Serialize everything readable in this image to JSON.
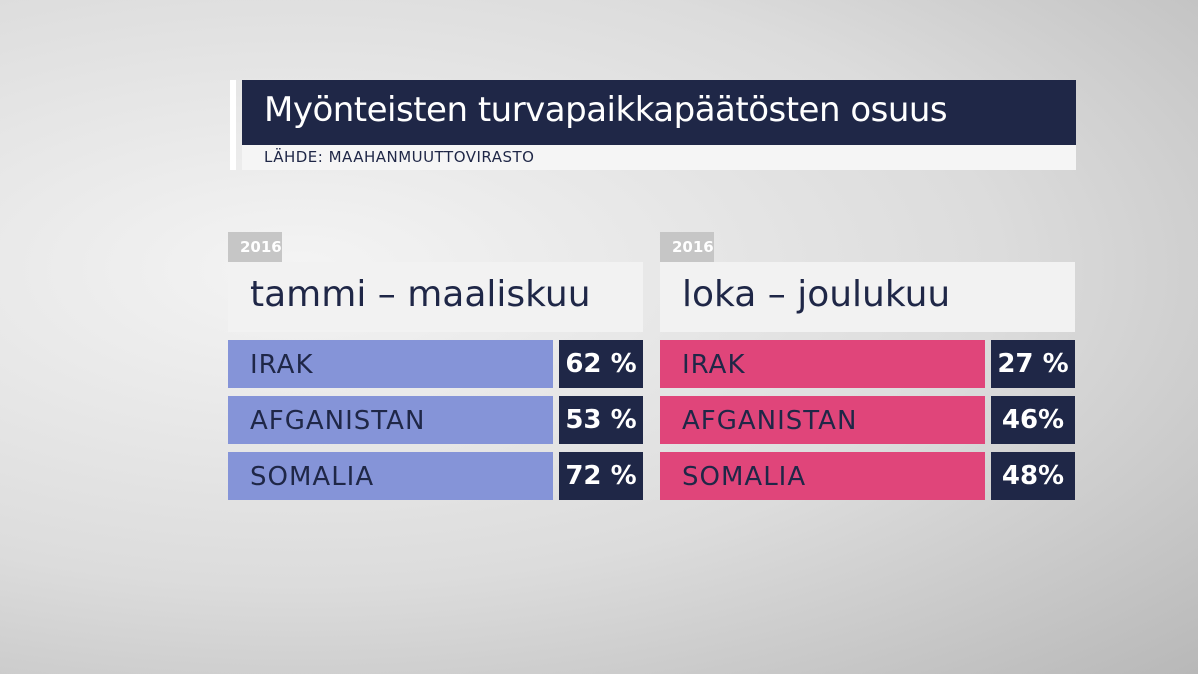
{
  "header": {
    "title": "Myönteisten turvapaikkapäätösten osuus",
    "source": "LÄHDE: MAAHANMUUTTOVIRASTO"
  },
  "panels": [
    {
      "year": "2016",
      "period": "tammi – maaliskuu",
      "color": "#8594d8",
      "rows": [
        {
          "label": "IRAK",
          "value": "62 %"
        },
        {
          "label": "AFGANISTAN",
          "value": "53 %"
        },
        {
          "label": "SOMALIA",
          "value": "72 %"
        }
      ]
    },
    {
      "year": "2016",
      "period": "loka – joulukuu",
      "color": "#e0457a",
      "rows": [
        {
          "label": "IRAK",
          "value": "27 %"
        },
        {
          "label": "AFGANISTAN",
          "value": "46%"
        },
        {
          "label": "SOMALIA",
          "value": "48%"
        }
      ]
    }
  ]
}
